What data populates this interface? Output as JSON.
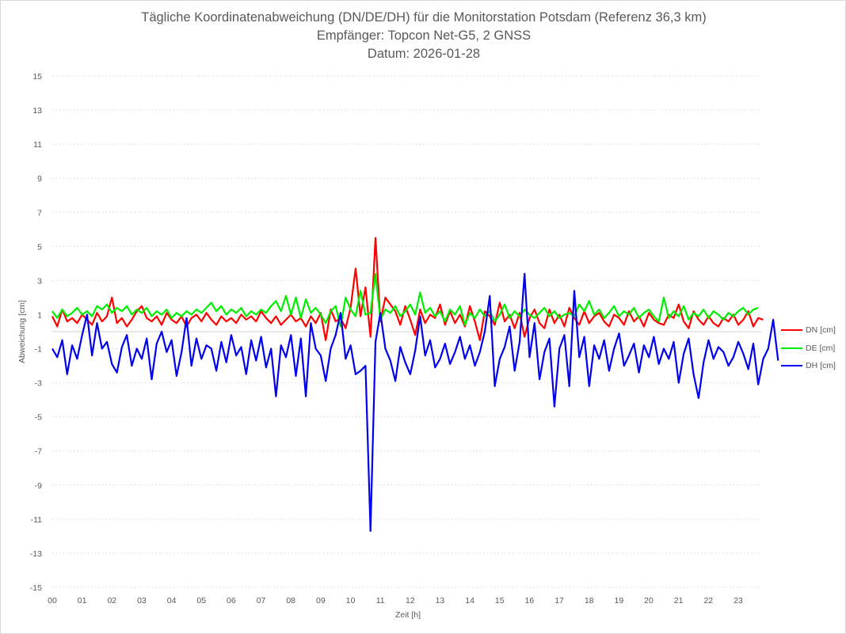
{
  "chart_data": {
    "type": "line",
    "title": "Tägliche Koordinatenabweichung (DN/DE/DH) für die Monitorstation Potsdam (Referenz 36,3 km)",
    "subtitle": "Empfänger: Topcon Net-G5, 2 GNSS",
    "date_line": "Datum: 2026-01-28",
    "xlabel": "Zeit [h]",
    "ylabel": "Abweichung [cm]",
    "xlim": [
      0,
      24
    ],
    "ylim": [
      -15,
      15
    ],
    "x_ticks": [
      "00",
      "01",
      "02",
      "03",
      "04",
      "05",
      "06",
      "07",
      "08",
      "09",
      "10",
      "11",
      "12",
      "13",
      "14",
      "15",
      "16",
      "17",
      "18",
      "19",
      "20",
      "21",
      "22",
      "23"
    ],
    "y_ticks": [
      15,
      13,
      11,
      9,
      7,
      5,
      3,
      1,
      -1,
      -3,
      -5,
      -7,
      -9,
      -11,
      -13,
      -15
    ],
    "grid": true,
    "legend_position": "right",
    "sample_interval_h": 0.1667,
    "series": [
      {
        "name": "DN [cm]",
        "color": "#ff0000",
        "values": [
          0.9,
          0.3,
          1.3,
          0.6,
          0.8,
          0.5,
          1.0,
          0.7,
          0.4,
          1.1,
          0.6,
          0.9,
          2.0,
          0.5,
          0.8,
          0.3,
          0.7,
          1.2,
          1.5,
          0.8,
          0.6,
          0.9,
          0.4,
          1.1,
          0.7,
          0.5,
          0.9,
          0.3,
          0.8,
          1.0,
          0.6,
          1.1,
          0.7,
          0.4,
          0.9,
          0.6,
          0.8,
          0.5,
          1.0,
          0.7,
          0.9,
          0.6,
          1.2,
          0.8,
          0.5,
          0.9,
          0.4,
          0.7,
          1.0,
          0.6,
          0.8,
          0.3,
          0.9,
          0.5,
          1.1,
          -0.5,
          1.3,
          0.6,
          0.8,
          0.2,
          1.4,
          3.7,
          0.9,
          2.6,
          -0.3,
          5.5,
          0.6,
          2.0,
          1.6,
          1.2,
          0.4,
          1.5,
          0.7,
          -0.2,
          1.3,
          0.5,
          1.0,
          0.8,
          1.6,
          0.4,
          1.2,
          0.5,
          1.0,
          0.3,
          1.5,
          0.6,
          -0.5,
          1.2,
          0.9,
          0.4,
          1.7,
          0.6,
          1.0,
          0.2,
          1.1,
          -0.3,
          0.8,
          1.3,
          0.5,
          0.2,
          1.3,
          0.5,
          1.0,
          0.3,
          1.4,
          0.8,
          0.4,
          1.2,
          0.5,
          0.9,
          1.1,
          0.6,
          0.3,
          1.0,
          0.8,
          0.4,
          1.2,
          0.6,
          0.9,
          0.3,
          1.1,
          0.7,
          0.5,
          0.4,
          1.0,
          0.8,
          1.6,
          0.6,
          0.2,
          1.2,
          0.7,
          0.4,
          0.9,
          0.5,
          0.3,
          0.8,
          0.6,
          1.0,
          0.4,
          0.7,
          1.2,
          0.3,
          0.8,
          0.7
        ]
      },
      {
        "name": "DE [cm]",
        "color": "#00ee00",
        "values": [
          1.2,
          0.8,
          1.3,
          0.9,
          1.1,
          1.4,
          1.0,
          1.2,
          0.9,
          1.5,
          1.3,
          1.6,
          1.1,
          1.4,
          1.2,
          1.5,
          1.0,
          1.3,
          1.1,
          1.4,
          0.9,
          1.2,
          1.0,
          1.3,
          0.8,
          1.1,
          0.9,
          1.2,
          1.0,
          1.3,
          1.1,
          1.4,
          1.7,
          1.2,
          1.5,
          1.0,
          1.3,
          1.1,
          1.4,
          0.9,
          1.2,
          1.0,
          1.3,
          1.1,
          1.5,
          1.8,
          1.2,
          2.1,
          1.0,
          2.0,
          0.8,
          1.9,
          1.1,
          1.4,
          1.0,
          0.5,
          1.2,
          1.5,
          0.3,
          2.0,
          1.3,
          0.9,
          2.4,
          1.0,
          1.1,
          3.4,
          0.7,
          1.3,
          1.1,
          1.5,
          0.9,
          1.2,
          1.6,
          1.0,
          2.3,
          1.1,
          1.4,
          0.9,
          1.2,
          0.6,
          1.3,
          1.0,
          1.5,
          0.4,
          1.1,
          0.8,
          1.3,
          0.9,
          1.2,
          0.6,
          1.0,
          1.6,
          0.8,
          1.2,
          0.9,
          1.3,
          1.0,
          0.8,
          1.1,
          1.4,
          0.9,
          1.2,
          0.8,
          1.0,
          1.1,
          0.9,
          1.6,
          1.2,
          1.8,
          1.0,
          1.3,
          0.8,
          1.1,
          1.5,
          0.9,
          1.2,
          1.0,
          1.4,
          0.8,
          1.1,
          1.3,
          0.9,
          0.6,
          2.0,
          0.8,
          1.2,
          0.9,
          1.5,
          0.7,
          1.1,
          0.9,
          1.3,
          0.8,
          1.2,
          1.0,
          0.7,
          1.1,
          0.9,
          1.2,
          1.4,
          1.0,
          1.3,
          1.4
        ]
      },
      {
        "name": "DH [cm]",
        "color": "#0000ee",
        "values": [
          -1.0,
          -1.5,
          -0.5,
          -2.5,
          -0.8,
          -1.6,
          -0.2,
          1.0,
          -1.4,
          0.5,
          -1.0,
          -0.6,
          -1.9,
          -2.4,
          -0.9,
          -0.2,
          -2.0,
          -1.0,
          -1.6,
          -0.4,
          -2.8,
          -0.7,
          0.0,
          -1.2,
          -0.5,
          -2.6,
          -1.2,
          0.8,
          -2.0,
          -0.4,
          -1.6,
          -0.8,
          -1.0,
          -2.3,
          -0.6,
          -1.8,
          -0.2,
          -1.4,
          -0.9,
          -2.5,
          -0.5,
          -1.7,
          -0.3,
          -2.1,
          -1.0,
          -3.8,
          -0.8,
          -1.5,
          -0.2,
          -2.6,
          -0.4,
          -3.8,
          0.5,
          -1.0,
          -1.4,
          -2.9,
          -1.0,
          -0.2,
          1.1,
          -1.6,
          -0.8,
          -2.5,
          -2.3,
          -2.0,
          -11.7,
          -0.6,
          1.1,
          -1.0,
          -1.7,
          -2.9,
          -0.9,
          -1.8,
          -2.5,
          -1.1,
          0.9,
          -1.4,
          -0.5,
          -2.1,
          -1.6,
          -0.7,
          -1.9,
          -1.2,
          -0.3,
          -1.6,
          -0.8,
          -2.0,
          -1.2,
          0.0,
          2.1,
          -3.2,
          -1.6,
          -0.9,
          0.3,
          -2.3,
          -0.6,
          3.4,
          -1.5,
          0.5,
          -2.8,
          -1.2,
          -0.4,
          -4.4,
          -1.0,
          -0.2,
          -3.2,
          2.4,
          -1.5,
          -0.3,
          -3.2,
          -0.8,
          -1.6,
          -0.5,
          -2.3,
          -1.0,
          -0.1,
          -2.0,
          -1.4,
          -0.7,
          -2.4,
          -0.8,
          -1.5,
          -0.3,
          -1.9,
          -1.0,
          -1.6,
          -0.6,
          -3.0,
          -1.3,
          -0.4,
          -2.5,
          -3.9,
          -1.8,
          -0.5,
          -1.6,
          -0.9,
          -1.2,
          -2.0,
          -1.5,
          -0.6,
          -1.3,
          -2.2,
          -0.7,
          -3.1,
          -1.6,
          -1.0,
          0.7,
          -1.7
        ]
      }
    ]
  }
}
